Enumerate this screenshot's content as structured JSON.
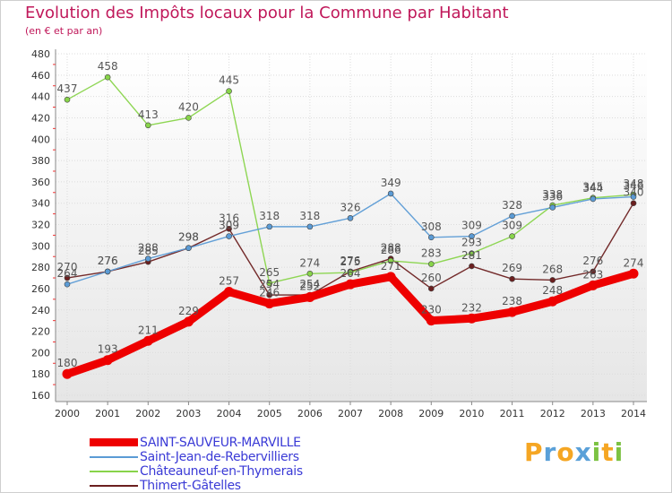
{
  "chart_data": {
    "type": "line",
    "title": "Evolution des Impôts locaux pour la Commune par Habitant",
    "subtitle": "(en € et par an)",
    "categories": [
      "2000",
      "2001",
      "2002",
      "2003",
      "2004",
      "2005",
      "2006",
      "2007",
      "2008",
      "2009",
      "2010",
      "2011",
      "2012",
      "2013",
      "2014"
    ],
    "yticks": [
      160,
      180,
      200,
      220,
      240,
      260,
      280,
      300,
      320,
      340,
      360,
      380,
      400,
      420,
      440,
      460,
      480
    ],
    "ylim": [
      160,
      480
    ],
    "grid": true,
    "legend_position": "bottom-left",
    "series": [
      {
        "name": "SAINT-SAUVEUR-MARVILLE",
        "color": "#ee0000",
        "values": [
          180,
          193,
          211,
          229,
          257,
          246,
          252,
          264,
          271,
          230,
          232,
          238,
          248,
          263,
          274
        ],
        "labels": [
          "180",
          "193",
          "211",
          "229",
          "257",
          "246",
          "252",
          "264",
          "271",
          "230",
          "232",
          "238",
          "248",
          "263",
          "274"
        ]
      },
      {
        "name": "Saint-Jean-de-Rebervilliers",
        "color": "#5b9bd5",
        "values": [
          264,
          276,
          288,
          298,
          309,
          318,
          318,
          326,
          349,
          308,
          309,
          328,
          336,
          344,
          346
        ],
        "labels": [
          "264",
          "276",
          "288",
          "298",
          "309",
          "318",
          "318",
          "326",
          "349",
          "308",
          "309",
          "328",
          "336",
          "344",
          "346"
        ]
      },
      {
        "name": "Châteauneuf-en-Thymerais",
        "color": "#88d44a",
        "values": [
          437,
          458,
          413,
          420,
          445,
          265,
          274,
          275,
          286,
          283,
          293,
          309,
          338,
          345,
          348
        ],
        "labels": [
          "437",
          "458",
          "413",
          "420",
          "445",
          "265",
          "274",
          "275",
          "286",
          "283",
          "293",
          "309",
          "338",
          "345",
          "348"
        ]
      },
      {
        "name": "Thimert-Gâtelles",
        "color": "#6b1f1f",
        "values": [
          270,
          276,
          285,
          298,
          316,
          254,
          254,
          276,
          288,
          260,
          281,
          269,
          268,
          276,
          340
        ],
        "labels": [
          "270",
          "276",
          "285",
          "298",
          "316",
          "254",
          "254",
          "276",
          "288",
          "260",
          "281",
          "269",
          "268",
          "276",
          "340"
        ]
      }
    ]
  },
  "logo": {
    "letters": [
      "P",
      "r",
      "o",
      "x",
      "i",
      "t",
      "i"
    ],
    "colors": [
      "#f5a623",
      "#5aa0d8",
      "#f5a623",
      "#5aa0d8",
      "#7cc242",
      "#f5a623",
      "#7cc242"
    ]
  }
}
